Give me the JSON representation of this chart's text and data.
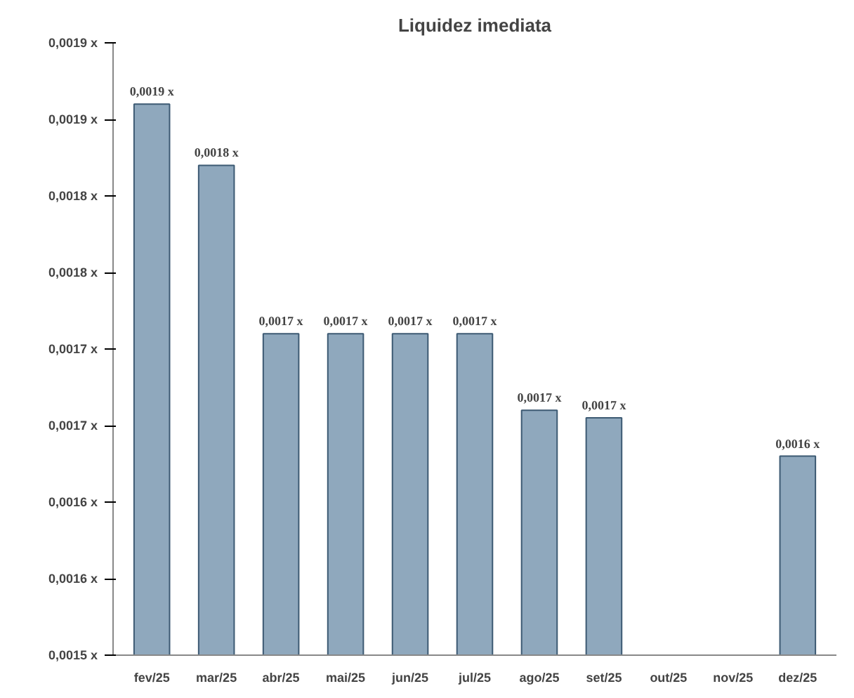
{
  "chart_data": {
    "type": "bar",
    "title": "Liquidez imediata",
    "categories": [
      "fev/25",
      "mar/25",
      "abr/25",
      "mai/25",
      "jun/25",
      "jul/25",
      "ago/25",
      "set/25",
      "out/25",
      "nov/25",
      "dez/25"
    ],
    "values": [
      0.00186,
      0.00182,
      0.00171,
      0.00171,
      0.00171,
      0.00171,
      0.00166,
      0.001655,
      null,
      null,
      0.00163
    ],
    "value_labels": [
      "0,0019 x",
      "0,0018 x",
      "0,0017 x",
      "0,0017 x",
      "0,0017 x",
      "0,0017 x",
      "0,0017 x",
      "0,0017 x",
      null,
      null,
      "0,0016 x"
    ],
    "color": "#8fa8bd",
    "ylim": [
      0.0015,
      0.0019
    ],
    "yticks": [
      {
        "value": 0.0015,
        "label": "0,0015 x"
      },
      {
        "value": 0.00155,
        "label": "0,0016 x"
      },
      {
        "value": 0.0016,
        "label": "0,0016 x"
      },
      {
        "value": 0.00165,
        "label": "0,0017 x"
      },
      {
        "value": 0.0017,
        "label": "0,0017 x"
      },
      {
        "value": 0.00175,
        "label": "0,0018 x"
      },
      {
        "value": 0.0018,
        "label": "0,0018 x"
      },
      {
        "value": 0.00185,
        "label": "0,0019 x"
      },
      {
        "value": 0.0019,
        "label": "0,0019 x"
      }
    ],
    "grid": false
  }
}
